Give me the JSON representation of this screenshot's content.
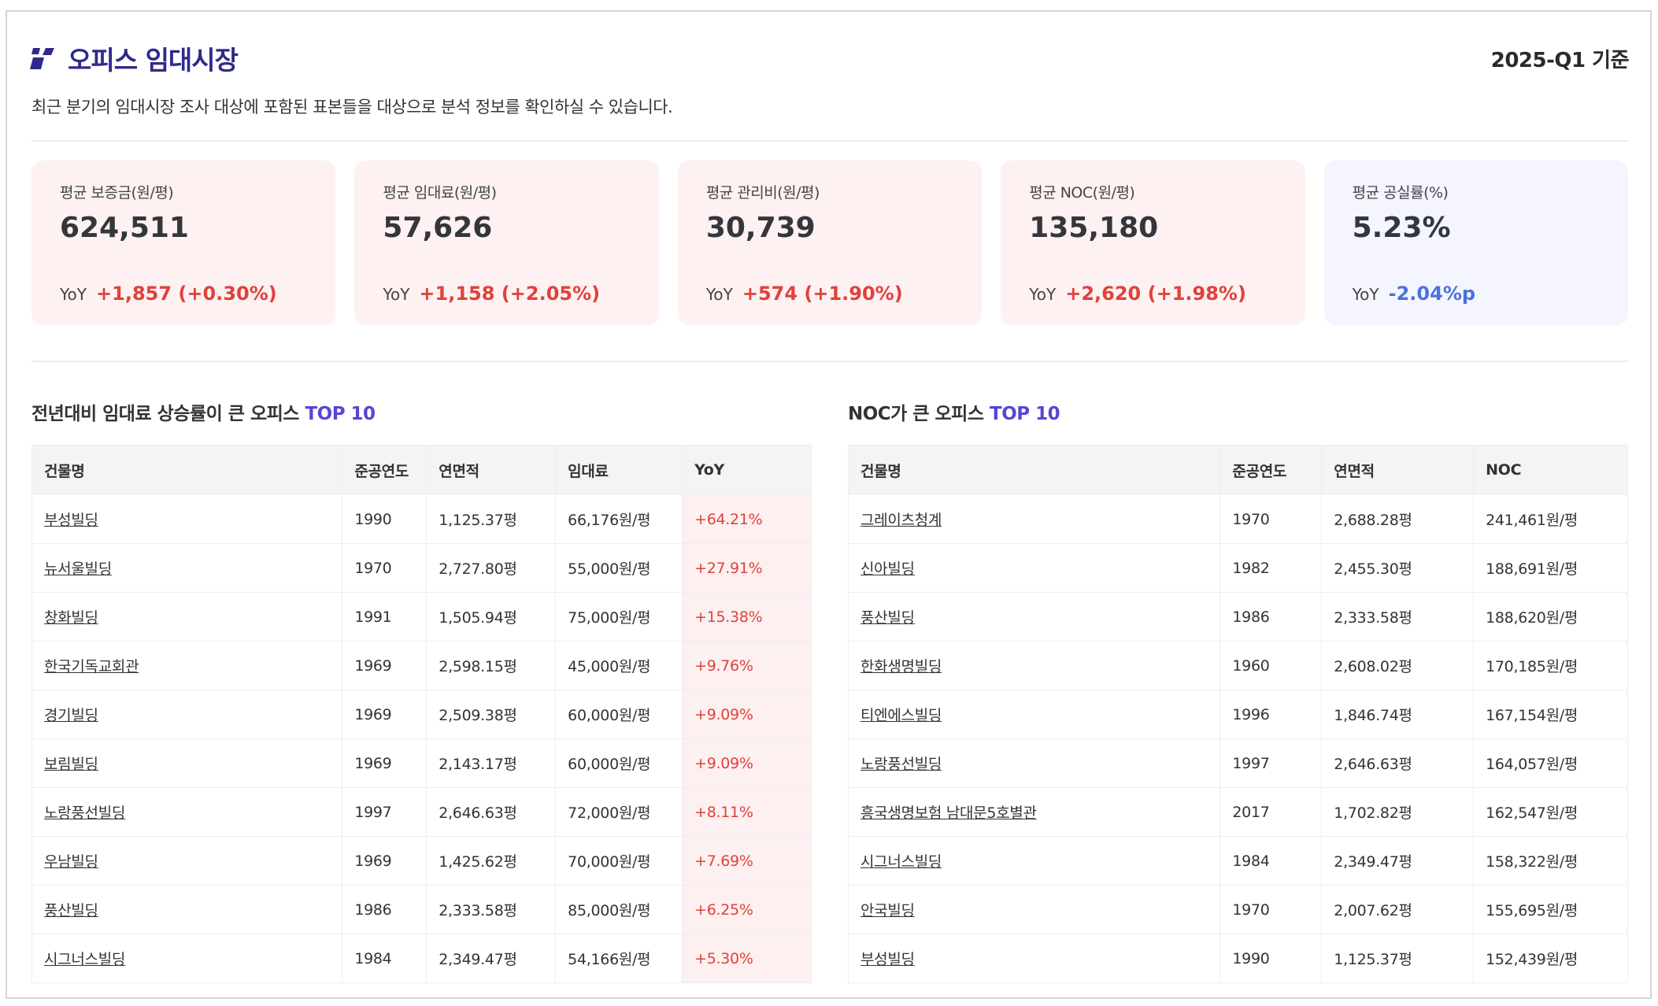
{
  "header": {
    "title": "오피스 임대시장",
    "basis": "2025-Q1 기준",
    "subtitle": "최근 분기의 임대시장 조사 대상에 포함된 표본들을 대상으로 분석 정보를 확인하실 수 있습니다.",
    "logo_icon": "brand-logo-icon"
  },
  "colors": {
    "title": "#2e2a8c",
    "accent": "#5546d6",
    "up": "#e0413b",
    "down": "#4a72dc"
  },
  "cards": [
    {
      "label": "평균 보증금(원/평)",
      "value": "624,511",
      "yoy_label": "YoY",
      "yoy": "+1,857 (+0.30%)",
      "dir": "up"
    },
    {
      "label": "평균 임대료(원/평)",
      "value": "57,626",
      "yoy_label": "YoY",
      "yoy": "+1,158 (+2.05%)",
      "dir": "up"
    },
    {
      "label": "평균 관리비(원/평)",
      "value": "30,739",
      "yoy_label": "YoY",
      "yoy": "+574 (+1.90%)",
      "dir": "up"
    },
    {
      "label": "평균 NOC(원/평)",
      "value": "135,180",
      "yoy_label": "YoY",
      "yoy": "+2,620 (+1.98%)",
      "dir": "up"
    },
    {
      "label": "평균 공실률(%)",
      "value": "5.23%",
      "yoy_label": "YoY",
      "yoy": "-2.04%p",
      "dir": "down"
    }
  ],
  "rent_top": {
    "title": "전년대비 임대료 상승률이 큰 오피스",
    "accent": "TOP 10",
    "columns": [
      "건물명",
      "준공연도",
      "연면적",
      "임대료",
      "YoY"
    ],
    "rows": [
      [
        "부성빌딩",
        "1990",
        "1,125.37평",
        "66,176원/평",
        "+64.21%"
      ],
      [
        "뉴서울빌딩",
        "1970",
        "2,727.80평",
        "55,000원/평",
        "+27.91%"
      ],
      [
        "창화빌딩",
        "1991",
        "1,505.94평",
        "75,000원/평",
        "+15.38%"
      ],
      [
        "한국기독교회관",
        "1969",
        "2,598.15평",
        "45,000원/평",
        "+9.76%"
      ],
      [
        "경기빌딩",
        "1969",
        "2,509.38평",
        "60,000원/평",
        "+9.09%"
      ],
      [
        "보림빌딩",
        "1969",
        "2,143.17평",
        "60,000원/평",
        "+9.09%"
      ],
      [
        "노랑풍선빌딩",
        "1997",
        "2,646.63평",
        "72,000원/평",
        "+8.11%"
      ],
      [
        "우남빌딩",
        "1969",
        "1,425.62평",
        "70,000원/평",
        "+7.69%"
      ],
      [
        "풍산빌딩",
        "1986",
        "2,333.58평",
        "85,000원/평",
        "+6.25%"
      ],
      [
        "시그너스빌딩",
        "1984",
        "2,349.47평",
        "54,166원/평",
        "+5.30%"
      ]
    ]
  },
  "noc_top": {
    "title": "NOC가 큰 오피스",
    "accent": "TOP 10",
    "columns": [
      "건물명",
      "준공연도",
      "연면적",
      "NOC"
    ],
    "rows": [
      [
        "그레이츠청계",
        "1970",
        "2,688.28평",
        "241,461원/평"
      ],
      [
        "신아빌딩",
        "1982",
        "2,455.30평",
        "188,691원/평"
      ],
      [
        "풍산빌딩",
        "1986",
        "2,333.58평",
        "188,620원/평"
      ],
      [
        "한화생명빌딩",
        "1960",
        "2,608.02평",
        "170,185원/평"
      ],
      [
        "티엔에스빌딩",
        "1996",
        "1,846.74평",
        "167,154원/평"
      ],
      [
        "노랑풍선빌딩",
        "1997",
        "2,646.63평",
        "164,057원/평"
      ],
      [
        "흥국생명보험 남대문5호별관",
        "2017",
        "1,702.82평",
        "162,547원/평"
      ],
      [
        "시그너스빌딩",
        "1984",
        "2,349.47평",
        "158,322원/평"
      ],
      [
        "안국빌딩",
        "1970",
        "2,007.62평",
        "155,695원/평"
      ],
      [
        "부성빌딩",
        "1990",
        "1,125.37평",
        "152,439원/평"
      ]
    ]
  }
}
